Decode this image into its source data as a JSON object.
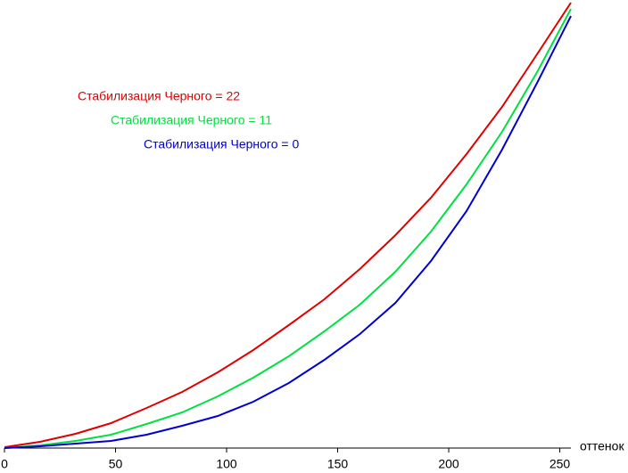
{
  "chart_data": {
    "type": "line",
    "x_label": "оттенок",
    "x": [
      0,
      16,
      32,
      48,
      64,
      80,
      96,
      112,
      128,
      144,
      160,
      176,
      192,
      208,
      224,
      240,
      255
    ],
    "series": [
      {
        "name": "Стабилизация Черного = 22",
        "color": "#e00000",
        "values": [
          0.2,
          1.4,
          3.2,
          5.6,
          9,
          12.6,
          17,
          22,
          27.6,
          33.4,
          40.2,
          47.8,
          56.2,
          66,
          76.6,
          88.6,
          100
        ]
      },
      {
        "name": "Стабилизация Черного = 11",
        "color": "#00e040",
        "values": [
          0,
          0.6,
          1.6,
          3,
          5.4,
          8,
          11.6,
          15.8,
          20.6,
          26.2,
          32.2,
          39.6,
          48.6,
          59.2,
          71,
          84.6,
          98.6
        ]
      },
      {
        "name": "Стабилизация Черного = 0",
        "color": "#0000d0",
        "values": [
          0,
          0.4,
          1,
          1.6,
          3,
          5,
          7.2,
          10.4,
          14.6,
          19.8,
          25.6,
          32.6,
          42,
          53.2,
          67,
          82.2,
          97
        ]
      }
    ],
    "xlim": [
      0,
      255
    ],
    "xticks": [
      0,
      50,
      100,
      150,
      200,
      250
    ],
    "ylim": [
      0,
      100
    ]
  }
}
